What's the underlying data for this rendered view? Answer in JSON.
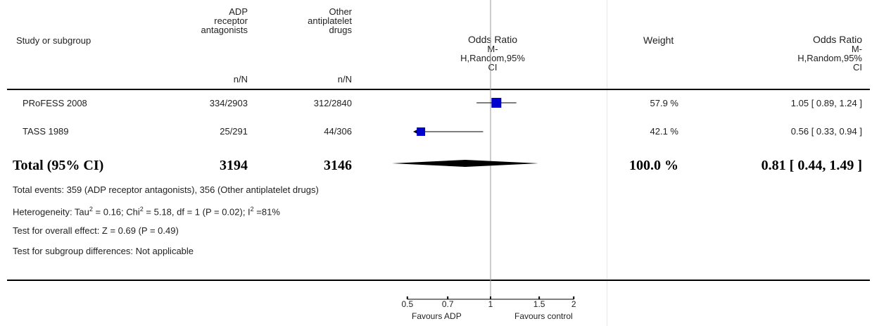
{
  "columns": {
    "study": "Study or subgroup",
    "exp_lines": [
      "ADP",
      "receptor",
      "antagonists"
    ],
    "ctl_lines": [
      "Other",
      "antiplatelet",
      "drugs"
    ],
    "exp_unit": "n/N",
    "ctl_unit": "n/N",
    "or_plot_lines": [
      "Odds Ratio",
      "M-",
      "H,Random,95%",
      "CI"
    ],
    "weight": "Weight",
    "or_text_lines": [
      "Odds Ratio",
      "M-",
      "H,Random,95%",
      "CI"
    ]
  },
  "rows": [
    {
      "study": "PRoFESS 2008",
      "exp": "334/2903",
      "ctl": "312/2840",
      "weight": "57.9 %",
      "ci_text": "1.05 [ 0.89, 1.24 ]"
    },
    {
      "study": "TASS 1989",
      "exp": "25/291",
      "ctl": "44/306",
      "weight": "42.1 %",
      "ci_text": "0.56 [ 0.33, 0.94 ]"
    }
  ],
  "total": {
    "label": "Total (95% CI)",
    "exp": "3194",
    "ctl": "3146",
    "weight": "100.0 %",
    "ci_text": "0.81 [ 0.44, 1.49 ]"
  },
  "footnotes": {
    "events": "Total events: 359 (ADP receptor antagonists), 356 (Other antiplatelet drugs)",
    "het_prefix": "Heterogeneity: Tau",
    "het_sup1": "2",
    "het_mid1": " = 0.16; Chi",
    "het_sup2": "2",
    "het_mid2": " = 5.18, df = 1 (P = 0.02); I",
    "het_sup3": "2",
    "het_suffix": " =81%",
    "overall": "Test for overall effect: Z = 0.69 (P = 0.49)",
    "subgroup": "Test for subgroup differences: Not applicable"
  },
  "axis_labels": {
    "left": "Favours ADP",
    "right": "Favours control"
  },
  "colors": {
    "marker": "#0000cc",
    "diamond": "#000000",
    "line": "#000000",
    "null_line": "#999999"
  },
  "chart_data": {
    "type": "forest",
    "scale": "log",
    "xlim": [
      0.5,
      2
    ],
    "ticks": [
      0.5,
      0.7,
      1,
      1.5,
      2
    ],
    "tick_labels": [
      "0.5",
      "0.7",
      "1",
      "1.5",
      "2"
    ],
    "null_value": 1,
    "studies": [
      {
        "name": "PRoFESS 2008",
        "or": 1.05,
        "lo": 0.89,
        "hi": 1.24,
        "weight": 57.9
      },
      {
        "name": "TASS 1989",
        "or": 0.56,
        "lo": 0.33,
        "hi": 0.94,
        "weight": 42.1
      }
    ],
    "pooled": {
      "or": 0.81,
      "lo": 0.44,
      "hi": 1.49
    }
  }
}
